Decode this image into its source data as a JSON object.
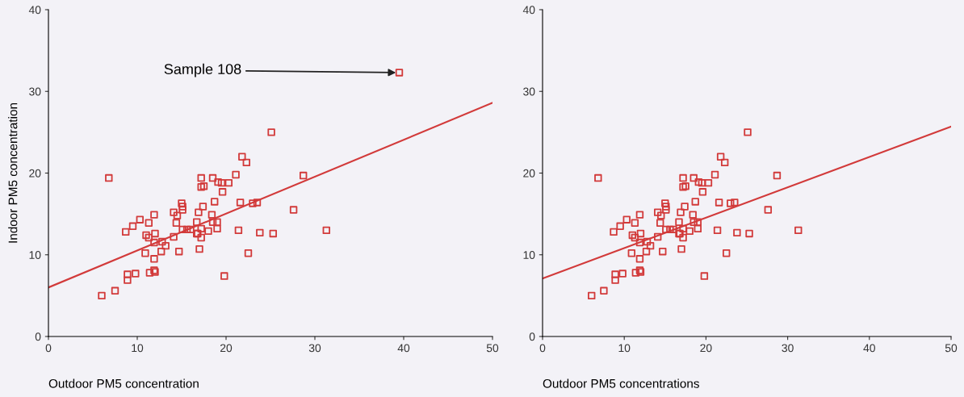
{
  "chart_data": [
    {
      "type": "scatter",
      "xlabel": "Outdoor PM5 concentration",
      "ylabel": "Indoor PM5 concentration",
      "xlim": [
        0,
        50
      ],
      "ylim": [
        0,
        40
      ],
      "xticks": [
        0,
        10,
        20,
        30,
        40,
        50
      ],
      "yticks": [
        0,
        10,
        20,
        30,
        40
      ],
      "grid": false,
      "legend": false,
      "annotations": [
        {
          "text": "Sample 108",
          "x": 39.5,
          "y": 32.3
        }
      ],
      "series": [
        {
          "type": "scatter",
          "marker": "square",
          "color": "#d23a3a",
          "x": [
            6.8,
            8.7,
            9.5,
            10.3,
            11.3,
            11.9,
            11.0,
            11.3,
            12.0,
            11.9,
            12.8,
            13.2,
            12.7,
            10.9,
            11.9,
            14.7,
            14.1,
            8.9,
            8.9,
            9.8,
            11.4,
            11.9,
            12.0,
            6.0,
            7.5,
            14.1,
            14.5,
            14.4,
            15.0,
            15.1,
            15.1,
            15.1,
            15.6,
            16.0,
            16.9,
            16.8,
            17.2,
            25.1,
            21.8,
            22.3,
            21.1,
            17.2,
            18.5,
            19.1,
            19.5,
            20.3,
            17.5,
            19.6,
            18.7,
            17.4,
            18.4,
            21.6,
            23.0,
            23.5,
            28.7,
            27.6,
            31.3,
            16.7,
            17.2,
            16.7,
            17.2,
            18.0,
            18.5,
            19.0,
            19.0,
            21.4,
            23.8,
            25.3,
            17.0,
            22.5,
            19.8,
            39.5
          ],
          "values": [
            19.4,
            12.8,
            13.5,
            14.3,
            13.9,
            14.9,
            12.4,
            12.1,
            12.6,
            11.5,
            11.6,
            11.1,
            10.4,
            10.2,
            9.5,
            10.4,
            12.2,
            7.6,
            6.9,
            7.7,
            7.8,
            8.1,
            7.9,
            5.0,
            5.6,
            15.2,
            14.8,
            13.9,
            16.3,
            15.9,
            15.5,
            13.1,
            13.1,
            13.1,
            15.2,
            12.6,
            18.3,
            25.0,
            22.0,
            21.3,
            19.8,
            19.4,
            19.4,
            18.9,
            18.8,
            18.8,
            18.4,
            17.7,
            16.5,
            15.9,
            14.9,
            16.4,
            16.3,
            16.4,
            19.7,
            15.5,
            13.0,
            14.0,
            13.2,
            12.6,
            12.1,
            12.9,
            14.0,
            14.0,
            13.2,
            13.0,
            12.7,
            12.6,
            10.7,
            10.2,
            7.4,
            32.3
          ]
        },
        {
          "type": "line",
          "color": "#d23a3a",
          "x": [
            0,
            50
          ],
          "values": [
            6.0,
            28.6
          ]
        }
      ]
    },
    {
      "type": "scatter",
      "xlabel": "Outdoor PM5 concentrations",
      "xlim": [
        0,
        50
      ],
      "ylim": [
        0,
        40
      ],
      "xticks": [
        0,
        10,
        20,
        30,
        40,
        50
      ],
      "yticks": [
        0,
        10,
        20,
        30,
        40
      ],
      "grid": false,
      "legend": false,
      "series": [
        {
          "type": "scatter",
          "marker": "square",
          "color": "#d23a3a",
          "x": [
            6.8,
            8.7,
            9.5,
            10.3,
            11.3,
            11.9,
            11.0,
            11.3,
            12.0,
            11.9,
            12.8,
            13.2,
            12.7,
            10.9,
            11.9,
            14.7,
            14.1,
            8.9,
            8.9,
            9.8,
            11.4,
            11.9,
            12.0,
            6.0,
            7.5,
            14.1,
            14.5,
            14.4,
            15.0,
            15.1,
            15.1,
            15.1,
            15.6,
            16.0,
            16.9,
            16.8,
            17.2,
            25.1,
            21.8,
            22.3,
            21.1,
            17.2,
            18.5,
            19.1,
            19.5,
            20.3,
            17.5,
            19.6,
            18.7,
            17.4,
            18.4,
            21.6,
            23.0,
            23.5,
            28.7,
            27.6,
            31.3,
            16.7,
            17.2,
            16.7,
            17.2,
            18.0,
            18.5,
            19.0,
            19.0,
            21.4,
            23.8,
            25.3,
            17.0,
            22.5,
            19.8
          ],
          "values": [
            19.4,
            12.8,
            13.5,
            14.3,
            13.9,
            14.9,
            12.4,
            12.1,
            12.6,
            11.5,
            11.6,
            11.1,
            10.4,
            10.2,
            9.5,
            10.4,
            12.2,
            7.6,
            6.9,
            7.7,
            7.8,
            8.1,
            7.9,
            5.0,
            5.6,
            15.2,
            14.8,
            13.9,
            16.3,
            15.9,
            15.5,
            13.1,
            13.1,
            13.1,
            15.2,
            12.6,
            18.3,
            25.0,
            22.0,
            21.3,
            19.8,
            19.4,
            19.4,
            18.9,
            18.8,
            18.8,
            18.4,
            17.7,
            16.5,
            15.9,
            14.9,
            16.4,
            16.3,
            16.4,
            19.7,
            15.5,
            13.0,
            14.0,
            13.2,
            12.6,
            12.1,
            12.9,
            14.0,
            14.0,
            13.2,
            13.0,
            12.7,
            12.6,
            10.7,
            10.2,
            7.4
          ]
        },
        {
          "type": "line",
          "color": "#d23a3a",
          "x": [
            0,
            50
          ],
          "values": [
            7.1,
            25.7
          ]
        }
      ]
    }
  ]
}
